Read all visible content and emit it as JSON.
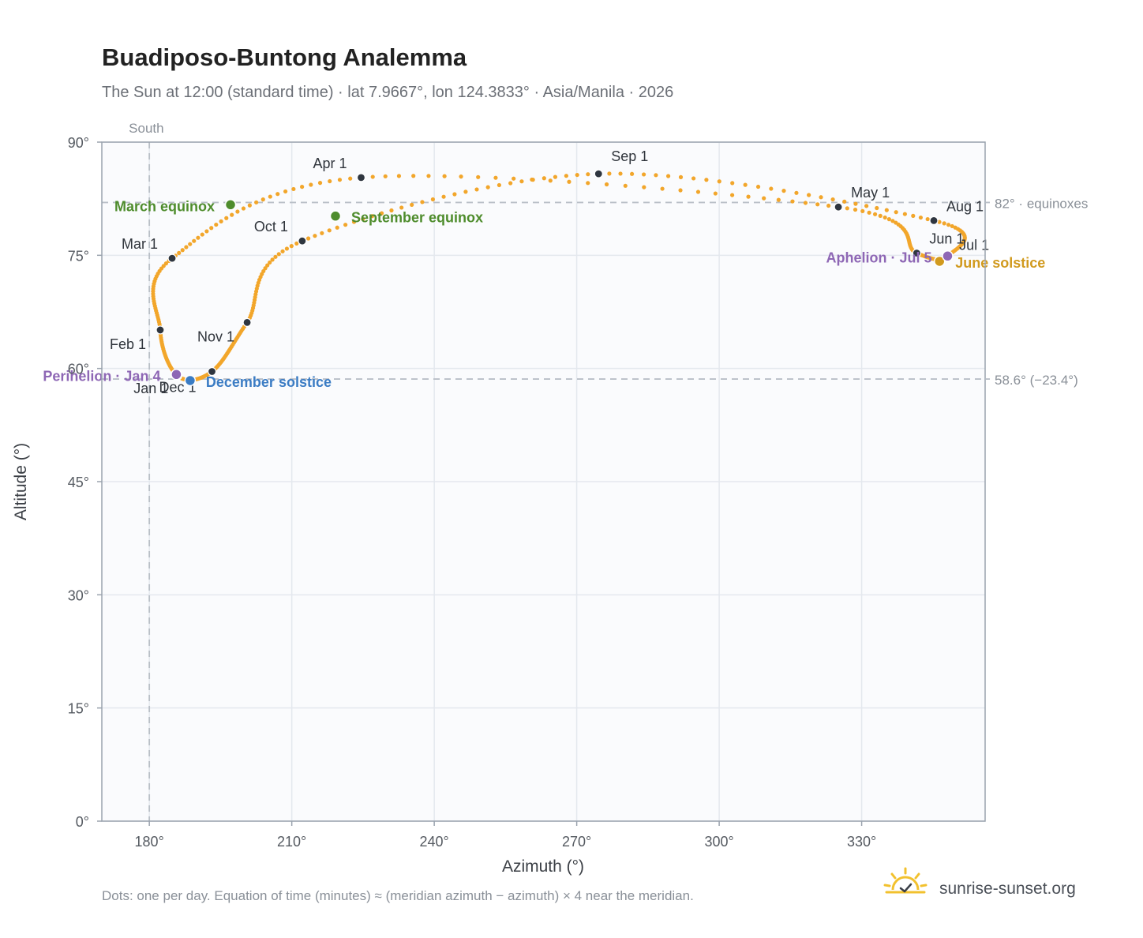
{
  "title": "Buadiposo-Buntong Analemma",
  "subtitle": "The Sun at 12:00 (standard time) · lat 7.9667°, lon 124.3833° · Asia/Manila · 2026",
  "footnote": "Dots: one per day. Equation of time (minutes) ≈ (meridian azimuth − azimuth) × 4 near the meridian.",
  "brand": {
    "name": "sunrise-sunset.org",
    "icon": "sun-check-icon"
  },
  "colors": {
    "dots": "#f2a62b",
    "month": "#2f3640",
    "equinox": "#4e8c2c",
    "december_solstice": "#3b7cc4",
    "june_solstice": "#d19a1e",
    "apsis": "#8e67b5",
    "ref_line": "#b9bfc7",
    "plot_bg": "#fafbfd",
    "grid": "#e4e8ee"
  },
  "chart_data": {
    "type": "scatter",
    "xlabel": "Azimuth (°)",
    "ylabel": "Altitude (°)",
    "xlim": [
      170,
      356
    ],
    "ylim": [
      0,
      90
    ],
    "x_ticks": [
      180,
      210,
      240,
      270,
      300,
      330
    ],
    "x_tick_labels": [
      "180°",
      "210°",
      "240°",
      "270°",
      "300°",
      "330°"
    ],
    "y_ticks": [
      0,
      15,
      30,
      45,
      60,
      75,
      90
    ],
    "y_tick_labels": [
      "0°",
      "15°",
      "30°",
      "45°",
      "60°",
      "75°",
      "90°"
    ],
    "grid": true,
    "meridian": {
      "azimuth": 180,
      "label": "South"
    },
    "reference_lines": [
      {
        "altitude": 82.0,
        "label": "82° · equinoxes"
      },
      {
        "altitude": 58.6,
        "label": "58.6° (−23.4°)"
      }
    ],
    "month_points": [
      {
        "label": "Jan 1",
        "az": 186.0,
        "alt": 59.0
      },
      {
        "label": "Feb 1",
        "az": 182.3,
        "alt": 65.1
      },
      {
        "label": "Mar 1",
        "az": 184.8,
        "alt": 74.6
      },
      {
        "label": "Apr 1",
        "az": 224.6,
        "alt": 85.3
      },
      {
        "label": "May 1",
        "az": 325.1,
        "alt": 81.4
      },
      {
        "label": "Jun 1",
        "az": 341.6,
        "alt": 75.3
      },
      {
        "label": "Jul 1",
        "az": 348.2,
        "alt": 74.9
      },
      {
        "label": "Aug 1",
        "az": 345.2,
        "alt": 79.6
      },
      {
        "label": "Sep 1",
        "az": 274.6,
        "alt": 85.8
      },
      {
        "label": "Oct 1",
        "az": 212.2,
        "alt": 76.9
      },
      {
        "label": "Nov 1",
        "az": 200.6,
        "alt": 66.1
      },
      {
        "label": "Dec 1",
        "az": 193.2,
        "alt": 59.6
      }
    ],
    "events": [
      {
        "label": "March equinox",
        "az": 197.1,
        "alt": 81.7,
        "kind": "equinox"
      },
      {
        "label": "September equinox",
        "az": 219.2,
        "alt": 80.2,
        "kind": "equinox"
      },
      {
        "label": "June solstice",
        "az": 346.4,
        "alt": 74.2,
        "kind": "june_solstice"
      },
      {
        "label": "December solstice",
        "az": 188.6,
        "alt": 58.4,
        "kind": "december_solstice"
      },
      {
        "label": "Perihelion · Jan 4",
        "az": 185.7,
        "alt": 59.2,
        "kind": "apsis"
      },
      {
        "label": "Aphelion · Jul 5",
        "az": 348.1,
        "alt": 74.9,
        "kind": "apsis"
      }
    ]
  }
}
